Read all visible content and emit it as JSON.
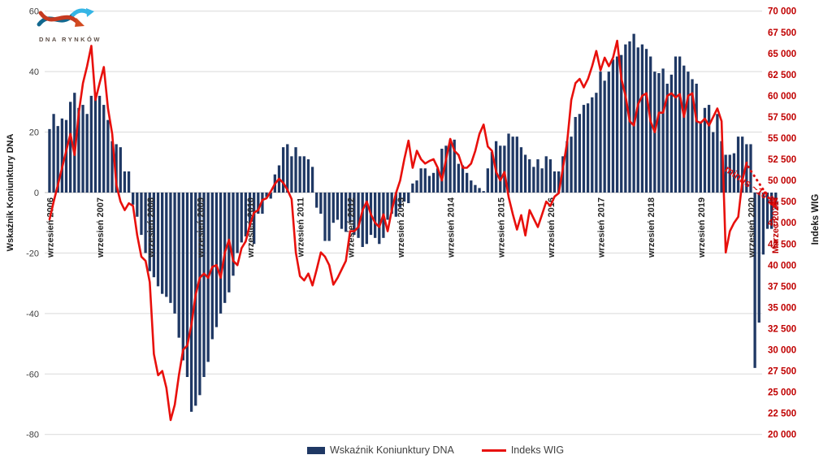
{
  "logo": {
    "brand": "DNA RYNKÓW"
  },
  "chart_data": {
    "type": "bar+line combo, monthly series Sep 2006 - Mar 2021",
    "grid": true,
    "legend_position": "bottom",
    "left_axis": {
      "title": "Wskaźnik Koniunktury DNA",
      "min": -80,
      "max": 60,
      "step": 20,
      "ticks": [
        60,
        40,
        20,
        0,
        -20,
        -40,
        -60,
        -80
      ]
    },
    "right_axis": {
      "title": "Indeks WIG",
      "min": 20000,
      "max": 70000,
      "step": 2500,
      "color": "#C00000",
      "ticks": [
        70000,
        67500,
        65000,
        62500,
        60000,
        57500,
        55000,
        52500,
        50000,
        47500,
        45000,
        42500,
        40000,
        37500,
        35000,
        32500,
        30000,
        27500,
        25000,
        22500,
        20000
      ]
    },
    "x_axis": {
      "year_labels": [
        {
          "label": "wrzesień 2006",
          "month_index": 0
        },
        {
          "label": "wrzesień 2007",
          "month_index": 12
        },
        {
          "label": "wrzesień 2008",
          "month_index": 24
        },
        {
          "label": "wrzesień 2009",
          "month_index": 36
        },
        {
          "label": "wrzesień 2010",
          "month_index": 48
        },
        {
          "label": "wrzesień 2011",
          "month_index": 60
        },
        {
          "label": "wrzesień 2012",
          "month_index": 72
        },
        {
          "label": "wrzesień 2013",
          "month_index": 84
        },
        {
          "label": "wrzesień 2014",
          "month_index": 96
        },
        {
          "label": "wrzesień 2015",
          "month_index": 108
        },
        {
          "label": "wrzesień 2016",
          "month_index": 120
        },
        {
          "label": "wrzesień 2017",
          "month_index": 132
        },
        {
          "label": "wrzesień 2018",
          "month_index": 144
        },
        {
          "label": "wrzesień 2019",
          "month_index": 156
        },
        {
          "label": "wrzesień 2020",
          "month_index": 168
        }
      ],
      "final_label": {
        "label": "Marzec 2021*",
        "month_index": 174,
        "color": "#C00000"
      }
    },
    "series": [
      {
        "name": "Wskaźnik Koniunktury DNA",
        "type": "bar",
        "color": "#1F3864",
        "start": "wrzesień 2006",
        "frequency": "monthly",
        "values": [
          21,
          26,
          22,
          24.5,
          24,
          30,
          33,
          28,
          29,
          26,
          32,
          33,
          32,
          29,
          24,
          17,
          16,
          15,
          7,
          7,
          -4,
          -8,
          -14,
          -20,
          -26,
          -28,
          -31,
          -33.5,
          -34.5,
          -36.5,
          -40,
          -48,
          -55.5,
          -61,
          -72.5,
          -70.5,
          -67,
          -61,
          -56,
          -48.5,
          -44.5,
          -40,
          -36.5,
          -33,
          -27.5,
          -20,
          -16.5,
          -14.5,
          -11,
          -17,
          -7,
          -7,
          -1.5,
          -2,
          6,
          9,
          15,
          16,
          12,
          15,
          12,
          12,
          11,
          8.5,
          -5,
          -7,
          -16,
          -16,
          -10,
          -9,
          -12,
          -13,
          -10,
          -14,
          -15,
          -18,
          -17,
          -14,
          -15,
          -17,
          -15,
          -9,
          -7,
          -8,
          -5,
          -3,
          -3.5,
          3,
          4,
          8,
          8,
          5.5,
          6.5,
          8,
          14.5,
          15.5,
          17.5,
          17.5,
          9.5,
          9,
          6.5,
          4,
          2.5,
          1.5,
          0.5,
          8,
          13.5,
          17,
          15.5,
          15.5,
          19.5,
          18.5,
          18.5,
          15,
          12.5,
          11,
          8.5,
          11,
          8,
          12,
          11,
          7,
          7,
          12,
          17,
          18.5,
          25,
          26,
          29,
          29.5,
          31.5,
          33,
          40,
          37,
          40,
          44,
          45,
          45.5,
          49,
          50,
          52.5,
          48,
          49,
          47.5,
          45,
          40,
          39.5,
          41,
          36,
          39,
          45,
          45,
          42,
          40,
          37.5,
          36,
          23,
          28,
          29,
          20,
          26,
          17,
          12.5,
          12.5,
          13,
          18.5,
          18.5,
          16,
          16,
          -58,
          -43,
          -20.5,
          -12,
          -12,
          -5.5
        ]
      },
      {
        "name": "Indeks WIG",
        "type": "line",
        "color": "#E8100C",
        "start": "wrzesień 2006",
        "frequency": "monthly",
        "values": [
          45400,
          47500,
          49500,
          51500,
          53500,
          55500,
          53000,
          58000,
          61500,
          63500,
          65900,
          59500,
          61500,
          63400,
          58500,
          55500,
          49500,
          47500,
          46500,
          47300,
          47000,
          43500,
          41000,
          40500,
          38000,
          29500,
          27000,
          27500,
          25500,
          21700,
          23500,
          27000,
          30000,
          30500,
          33000,
          36500,
          38500,
          39000,
          38500,
          39800,
          40000,
          38500,
          41500,
          43000,
          40500,
          40000,
          42000,
          42800,
          44800,
          46200,
          46500,
          47700,
          47900,
          48700,
          49600,
          50200,
          49700,
          48900,
          47800,
          41500,
          38700,
          38200,
          39000,
          37600,
          39500,
          41500,
          41000,
          40000,
          37700,
          38500,
          39500,
          40500,
          44000,
          44000,
          44500,
          46500,
          47500,
          46000,
          45000,
          44500,
          46000,
          44000,
          46500,
          48500,
          50000,
          52500,
          54700,
          51500,
          53500,
          52500,
          52000,
          52300,
          52500,
          51500,
          50000,
          52500,
          54900,
          53500,
          53000,
          51500,
          51500,
          52000,
          53500,
          55500,
          56600,
          54000,
          53500,
          51000,
          50000,
          51000,
          48000,
          46000,
          44200,
          45900,
          43500,
          46500,
          45500,
          44500,
          46000,
          47500,
          47000,
          48100,
          48500,
          51500,
          54500,
          59500,
          61500,
          62000,
          61000,
          62000,
          63500,
          65300,
          63000,
          64500,
          63500,
          64500,
          66500,
          62000,
          60000,
          57000,
          56500,
          59000,
          60000,
          60300,
          57000,
          55700,
          58000,
          58000,
          60000,
          60300,
          59800,
          60200,
          57500,
          60000,
          60300,
          57000,
          56800,
          57300,
          56500,
          57500,
          58500,
          57000,
          41500,
          44000,
          45000,
          45700,
          50000,
          52100
        ]
      }
    ],
    "projection": {
      "label": "minus ~10 %",
      "color": "#E01010",
      "style": "dotted-arrow",
      "from_month_index": 167,
      "end_month_index": 174,
      "end_value": 47300
    },
    "legend": [
      {
        "label": "Wskaźnik Koniunktury DNA",
        "swatch": "bar",
        "color": "#1F3864"
      },
      {
        "label": "Indeks WIG",
        "swatch": "line",
        "color": "#E8100C"
      }
    ]
  }
}
